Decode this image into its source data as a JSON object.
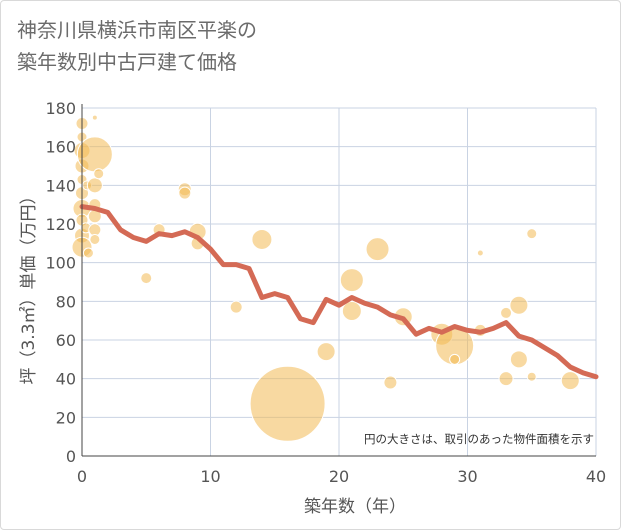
{
  "title_line1": "神奈川県横浜市南区平楽の",
  "title_line2": "築年数別中古戸建て価格",
  "colors": {
    "bubble": "#f3b954",
    "line": "#d46a55",
    "grid": "#c9d3e3",
    "text": "#555555"
  },
  "chart_data": {
    "type": "scatter",
    "xlabel": "築年数（年）",
    "ylabel": "坪（3.3㎡）単価（万円）",
    "xlim": [
      0,
      40
    ],
    "ylim": [
      0,
      180
    ],
    "xticks": [
      "0",
      "10",
      "20",
      "30",
      "40"
    ],
    "yticks": [
      "0",
      "20",
      "40",
      "60",
      "80",
      "100",
      "120",
      "140",
      "160",
      "180"
    ],
    "note": "円の大きさは、取引のあった物件面積を示す",
    "bubbles": [
      {
        "x": 0,
        "y": 172,
        "s": 1.2
      },
      {
        "x": 0,
        "y": 165,
        "s": 1.0
      },
      {
        "x": 0,
        "y": 158,
        "s": 1.6
      },
      {
        "x": 0,
        "y": 150,
        "s": 1.4
      },
      {
        "x": 0,
        "y": 143,
        "s": 1.0
      },
      {
        "x": 0,
        "y": 136,
        "s": 1.3
      },
      {
        "x": 0,
        "y": 128,
        "s": 1.8
      },
      {
        "x": 0,
        "y": 122,
        "s": 1.2
      },
      {
        "x": 0,
        "y": 114,
        "s": 1.5
      },
      {
        "x": 0,
        "y": 108,
        "s": 2.0
      },
      {
        "x": 0.3,
        "y": 118,
        "s": 1.0
      },
      {
        "x": 0.4,
        "y": 140,
        "s": 0.9
      },
      {
        "x": 0.5,
        "y": 105,
        "s": 1.0
      },
      {
        "x": 1,
        "y": 175,
        "s": 0.5
      },
      {
        "x": 1,
        "y": 156,
        "s": 3.5
      },
      {
        "x": 1,
        "y": 140,
        "s": 1.5
      },
      {
        "x": 1,
        "y": 130,
        "s": 1.2
      },
      {
        "x": 1,
        "y": 124,
        "s": 1.3
      },
      {
        "x": 1,
        "y": 117,
        "s": 1.2
      },
      {
        "x": 1,
        "y": 112,
        "s": 1.0
      },
      {
        "x": 1.3,
        "y": 146,
        "s": 1.0
      },
      {
        "x": 5,
        "y": 92,
        "s": 1.1
      },
      {
        "x": 6,
        "y": 117,
        "s": 1.2
      },
      {
        "x": 8,
        "y": 138,
        "s": 1.3
      },
      {
        "x": 8,
        "y": 136,
        "s": 1.2
      },
      {
        "x": 9,
        "y": 116,
        "s": 1.7
      },
      {
        "x": 9,
        "y": 110,
        "s": 1.3
      },
      {
        "x": 12,
        "y": 77,
        "s": 1.2
      },
      {
        "x": 14,
        "y": 112,
        "s": 2.0
      },
      {
        "x": 16,
        "y": 27,
        "s": 7.5
      },
      {
        "x": 19,
        "y": 54,
        "s": 1.8
      },
      {
        "x": 21,
        "y": 91,
        "s": 2.3
      },
      {
        "x": 21,
        "y": 75,
        "s": 1.9
      },
      {
        "x": 23,
        "y": 107,
        "s": 2.3
      },
      {
        "x": 24,
        "y": 38,
        "s": 1.3
      },
      {
        "x": 25,
        "y": 72,
        "s": 1.8
      },
      {
        "x": 28,
        "y": 63,
        "s": 2.2
      },
      {
        "x": 29,
        "y": 57,
        "s": 3.8
      },
      {
        "x": 29,
        "y": 50,
        "s": 1.0
      },
      {
        "x": 31,
        "y": 105,
        "s": 0.6
      },
      {
        "x": 31,
        "y": 65,
        "s": 1.2
      },
      {
        "x": 33,
        "y": 74,
        "s": 1.1
      },
      {
        "x": 33,
        "y": 40,
        "s": 1.4
      },
      {
        "x": 34,
        "y": 78,
        "s": 1.8
      },
      {
        "x": 34,
        "y": 50,
        "s": 1.7
      },
      {
        "x": 35,
        "y": 115,
        "s": 1.0
      },
      {
        "x": 35,
        "y": 41,
        "s": 0.9
      },
      {
        "x": 38,
        "y": 39,
        "s": 1.8
      }
    ],
    "series": [
      {
        "x": [
          0,
          1,
          2,
          3,
          4,
          5,
          6,
          7,
          8,
          9,
          10,
          11,
          12,
          13,
          14,
          15,
          16,
          17,
          18,
          19,
          20,
          21,
          22,
          23,
          24,
          25,
          26,
          27,
          28,
          29,
          30,
          31,
          32,
          33,
          34,
          35,
          36,
          37,
          38,
          39,
          40
        ],
        "y": [
          129,
          128,
          126,
          117,
          113,
          111,
          115,
          114,
          116,
          113,
          107,
          99,
          99,
          97,
          82,
          84,
          82,
          71,
          69,
          81,
          78,
          82,
          79,
          77,
          73,
          71,
          63,
          66,
          64,
          67,
          65,
          64,
          66,
          69,
          62,
          60,
          56,
          52,
          46,
          43,
          41
        ]
      }
    ]
  }
}
